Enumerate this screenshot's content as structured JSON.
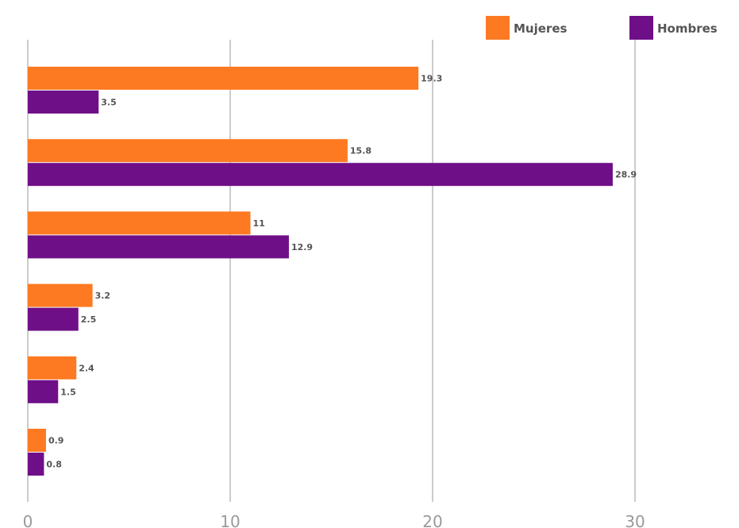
{
  "chart_data": {
    "type": "bar",
    "orientation": "horizontal",
    "categories": [
      "",
      "",
      "",
      "",
      "",
      ""
    ],
    "series": [
      {
        "name": "Mujeres",
        "color": "#fd7a22",
        "values": [
          19.3,
          15.8,
          11,
          3.2,
          2.4,
          0.9
        ]
      },
      {
        "name": "Hombres",
        "color": "#6f0f88",
        "values": [
          3.5,
          28.9,
          12.9,
          2.5,
          1.5,
          0.8
        ]
      }
    ],
    "value_labels": [
      [
        "19.3",
        "15.8",
        "11",
        "3.2",
        "2.4",
        "0.9"
      ],
      [
        "3.5",
        "28.9",
        "12.9",
        "2.5",
        "1.5",
        "0.8"
      ]
    ],
    "xlim": [
      0,
      30
    ],
    "x_ticks": [
      "0",
      "10",
      "20",
      "30"
    ],
    "legend_position": "top-right",
    "grid": true
  }
}
